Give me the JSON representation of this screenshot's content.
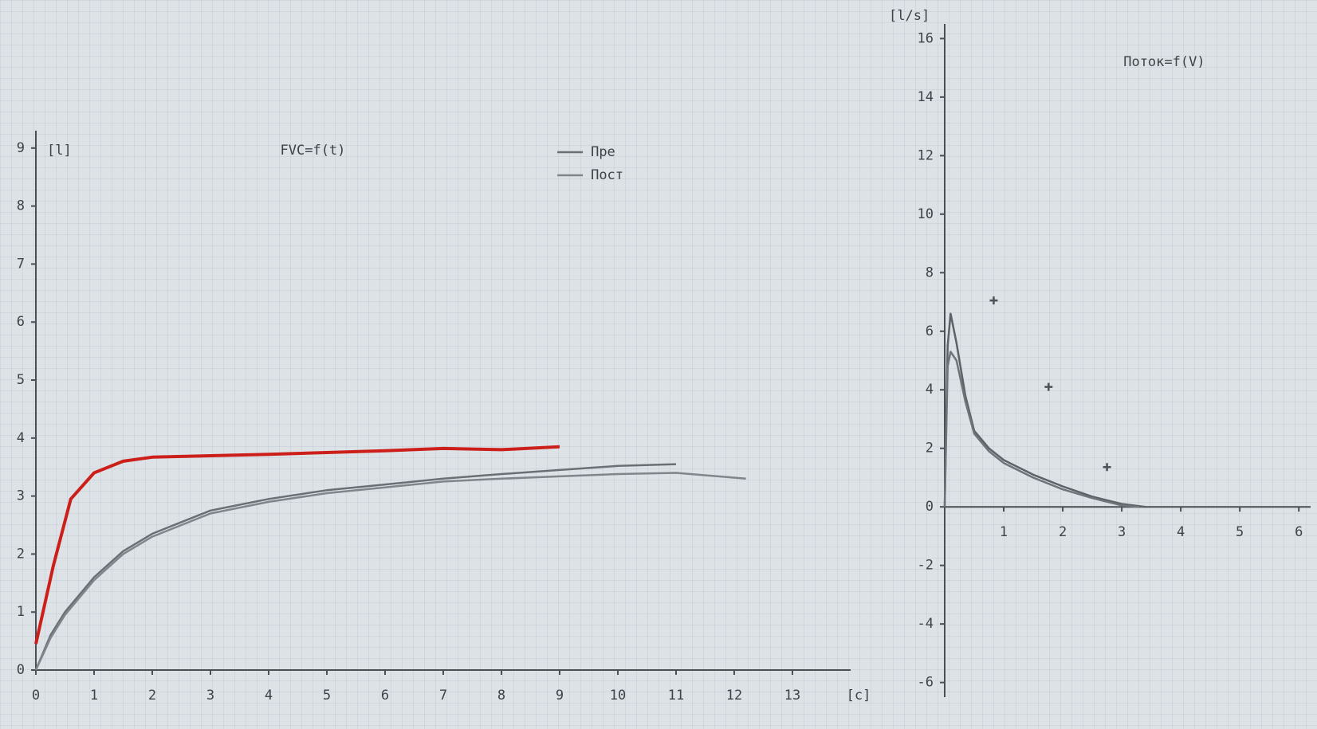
{
  "chart_data": [
    {
      "type": "line",
      "title": "FVC=f(t)",
      "y_label": "[l]",
      "x_label": "[c]",
      "xlim": [
        0,
        14
      ],
      "ylim": [
        0,
        9.3
      ],
      "xticks": [
        0,
        1,
        2,
        3,
        4,
        5,
        6,
        7,
        8,
        9,
        10,
        11,
        12,
        13
      ],
      "yticks": [
        0,
        1,
        2,
        3,
        4,
        5,
        6,
        7,
        8,
        9
      ],
      "grid": false,
      "legend": "top-center",
      "series": [
        {
          "name": "Пре",
          "color": "#6b6f75",
          "x": [
            0,
            0.25,
            0.5,
            1,
            1.5,
            2,
            3,
            4,
            5,
            6,
            7,
            8,
            9,
            10,
            11
          ],
          "values": [
            0,
            0.6,
            1.0,
            1.6,
            2.05,
            2.35,
            2.75,
            2.95,
            3.1,
            3.2,
            3.3,
            3.38,
            3.45,
            3.52,
            3.55
          ]
        },
        {
          "name": "Пост",
          "color": "#80858c",
          "x": [
            0,
            0.25,
            0.5,
            1,
            1.5,
            2,
            3,
            4,
            5,
            6,
            7,
            8,
            9,
            10,
            11,
            12.2
          ],
          "values": [
            0,
            0.55,
            0.95,
            1.55,
            2.0,
            2.3,
            2.7,
            2.9,
            3.05,
            3.15,
            3.25,
            3.3,
            3.34,
            3.38,
            3.4,
            3.3
          ]
        },
        {
          "color": "#cc1f1a",
          "x": [
            0,
            0.3,
            0.6,
            1,
            1.5,
            2,
            4,
            6,
            7,
            8,
            9
          ],
          "values": [
            0.45,
            1.8,
            2.95,
            3.4,
            3.6,
            3.67,
            3.72,
            3.78,
            3.82,
            3.8,
            3.85
          ]
        }
      ]
    },
    {
      "type": "line",
      "title": "Поток=f(V)",
      "y_label": "[l/s]",
      "xlim": [
        0,
        6.2
      ],
      "ylim": [
        -6.5,
        16.5
      ],
      "xticks": [
        1,
        2,
        3,
        4,
        5,
        6
      ],
      "yticks": [
        -6,
        -4,
        -2,
        0,
        2,
        4,
        6,
        8,
        10,
        12,
        14,
        16
      ],
      "grid": false,
      "series": [
        {
          "color": "#5d6168",
          "x": [
            0,
            0.05,
            0.1,
            0.2,
            0.35,
            0.5,
            0.75,
            1,
            1.5,
            2,
            2.5,
            3,
            3.4
          ],
          "values": [
            0,
            5.5,
            6.6,
            5.6,
            3.8,
            2.6,
            2.0,
            1.6,
            1.1,
            0.7,
            0.35,
            0.1,
            0
          ]
        },
        {
          "color": "#6f747b",
          "x": [
            0,
            0.05,
            0.1,
            0.2,
            0.35,
            0.5,
            0.75,
            1,
            1.5,
            2,
            2.5,
            3,
            3.3
          ],
          "values": [
            0,
            4.8,
            5.3,
            5.0,
            3.6,
            2.5,
            1.9,
            1.5,
            1.0,
            0.6,
            0.3,
            0.05,
            0
          ]
        },
        {
          "color": "#4e5258",
          "style": "markers",
          "x": [
            0.83,
            1.76,
            2.75
          ],
          "values": [
            7.05,
            4.1,
            1.36
          ]
        }
      ]
    }
  ]
}
